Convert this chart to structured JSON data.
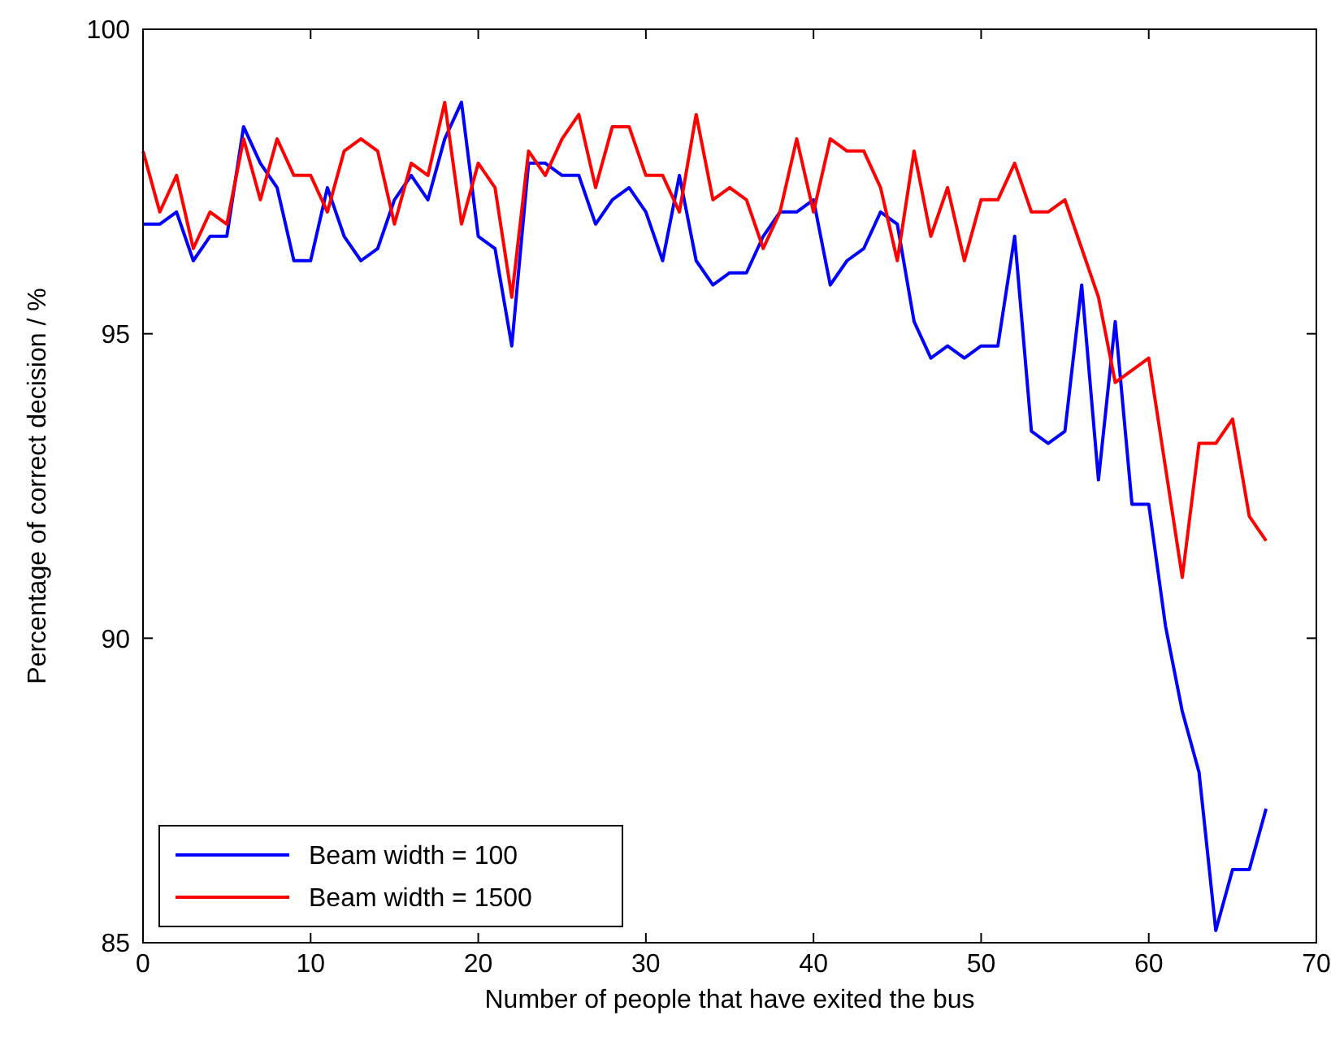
{
  "chart_data": {
    "type": "line",
    "xlabel": "Number of people that have exited the bus",
    "ylabel": "Percentage of correct decision / %",
    "x": [
      0,
      1,
      2,
      3,
      4,
      5,
      6,
      7,
      8,
      9,
      10,
      11,
      12,
      13,
      14,
      15,
      16,
      17,
      18,
      19,
      20,
      21,
      22,
      23,
      24,
      25,
      26,
      27,
      28,
      29,
      30,
      31,
      32,
      33,
      34,
      35,
      36,
      37,
      38,
      39,
      40,
      41,
      42,
      43,
      44,
      45,
      46,
      47,
      48,
      49,
      50,
      51,
      52,
      53,
      54,
      55,
      56,
      57,
      58,
      59,
      60,
      61,
      62,
      63,
      64,
      65,
      66,
      67
    ],
    "series": [
      {
        "name": "Beam width = 100",
        "color": "#0000ff",
        "values": [
          96.8,
          96.8,
          97.0,
          96.2,
          96.6,
          96.6,
          98.4,
          97.8,
          97.4,
          96.2,
          96.2,
          97.4,
          96.6,
          96.2,
          96.4,
          97.2,
          97.6,
          97.2,
          98.2,
          98.8,
          96.6,
          96.4,
          94.8,
          97.8,
          97.8,
          97.6,
          97.6,
          96.8,
          97.2,
          97.4,
          97.0,
          96.2,
          97.6,
          96.2,
          95.8,
          96.0,
          96.0,
          96.6,
          97.0,
          97.0,
          97.2,
          95.8,
          96.2,
          96.4,
          97.0,
          96.8,
          95.2,
          94.6,
          94.8,
          94.6,
          94.8,
          94.8,
          96.6,
          93.4,
          93.2,
          93.4,
          95.8,
          92.6,
          95.2,
          92.2,
          92.2,
          90.2,
          88.8,
          87.8,
          85.2,
          86.2,
          86.2,
          87.2
        ]
      },
      {
        "name": "Beam width = 1500",
        "color": "#ff0000",
        "values": [
          98.0,
          97.0,
          97.6,
          96.4,
          97.0,
          96.8,
          98.2,
          97.2,
          98.2,
          97.6,
          97.6,
          97.0,
          98.0,
          98.2,
          98.0,
          96.8,
          97.8,
          97.6,
          98.8,
          96.8,
          97.8,
          97.4,
          95.6,
          98.0,
          97.6,
          98.2,
          98.6,
          97.4,
          98.4,
          98.4,
          97.6,
          97.6,
          97.0,
          98.6,
          97.2,
          97.4,
          97.2,
          96.4,
          97.0,
          98.2,
          97.0,
          98.2,
          98.0,
          98.0,
          97.4,
          96.2,
          98.0,
          96.6,
          97.4,
          96.2,
          97.2,
          97.2,
          97.8,
          97.0,
          97.0,
          97.2,
          96.4,
          95.6,
          94.2,
          94.4,
          94.6,
          92.8,
          91.0,
          93.2,
          93.2,
          93.6,
          92.0,
          91.6
        ]
      }
    ],
    "xlim": [
      0,
      70
    ],
    "xticks": [
      0,
      10,
      20,
      30,
      40,
      50,
      60,
      70
    ],
    "ylim": [
      85,
      100
    ],
    "yticks": [
      85,
      90,
      95,
      100
    ],
    "legend": "bottom left",
    "grid": false,
    "marker": "none",
    "line_style": "solid"
  }
}
